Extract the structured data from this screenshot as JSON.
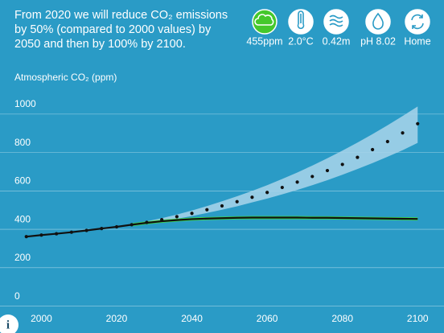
{
  "header": {
    "intro": [
      "From 2020 we will reduce CO₂ emissions",
      "by 50% (compared to 2000 values) by",
      "2050 and then by 100% by 2100."
    ]
  },
  "indicators": [
    {
      "label": "455ppm",
      "selected": true
    },
    {
      "label": "2.0°C",
      "selected": false
    },
    {
      "label": "0.42m",
      "selected": false
    },
    {
      "label": "pH 8.02",
      "selected": false
    },
    {
      "label": "Home",
      "selected": false
    }
  ],
  "info_button": "i",
  "chart_data": {
    "type": "line",
    "y_label": "Atmospheric CO₂ (ppm)",
    "x": [
      1996,
      2000,
      2004,
      2008,
      2012,
      2016,
      2020,
      2024,
      2028,
      2032,
      2036,
      2040,
      2044,
      2048,
      2052,
      2056,
      2060,
      2064,
      2068,
      2072,
      2076,
      2080,
      2084,
      2088,
      2092,
      2096,
      2100
    ],
    "series": [
      {
        "style": "band",
        "color": "#a9d5ea",
        "low": [
          null,
          null,
          null,
          null,
          null,
          null,
          null,
          420,
          430,
          442,
          455,
          469,
          485,
          502,
          520,
          540,
          560,
          582,
          605,
          630,
          656,
          684,
          714,
          745,
          778,
          812,
          850
        ],
        "high": [
          null,
          null,
          null,
          null,
          null,
          null,
          null,
          428,
          442,
          458,
          477,
          498,
          521,
          546,
          572,
          600,
          630,
          662,
          696,
          732,
          770,
          810,
          852,
          896,
          942,
          990,
          1040
        ]
      },
      {
        "style": "band",
        "color": "#3ee23a",
        "low": [
          null,
          null,
          null,
          null,
          null,
          null,
          null,
          416,
          426,
          434,
          440,
          445,
          448,
          450,
          452,
          453,
          453,
          453,
          453,
          452,
          452,
          451,
          450,
          449,
          448,
          447,
          446
        ],
        "high": [
          null,
          null,
          null,
          null,
          null,
          null,
          null,
          432,
          442,
          450,
          456,
          461,
          464,
          466,
          468,
          469,
          469,
          469,
          469,
          468,
          468,
          467,
          466,
          465,
          464,
          463,
          462
        ]
      },
      {
        "style": "line",
        "color": "#111111",
        "values": [
          362,
          370,
          377,
          385,
          394,
          404,
          413,
          424,
          434,
          442,
          448,
          453,
          456,
          458,
          460,
          461,
          461,
          461,
          461,
          460,
          460,
          459,
          458,
          457,
          456,
          455,
          454
        ]
      },
      {
        "style": "dots",
        "color": "#111111",
        "values": [
          362,
          370,
          377,
          385,
          394,
          404,
          413,
          424,
          436,
          450,
          466,
          483,
          502,
          522,
          544,
          567,
          592,
          618,
          646,
          675,
          706,
          738,
          775,
          815,
          857,
          902,
          950
        ]
      }
    ],
    "xlim": [
      1989,
      2107
    ],
    "xticks": [
      2000,
      2020,
      2040,
      2060,
      2080,
      2100
    ],
    "ylim": [
      -140,
      1100
    ],
    "yticks": [
      0,
      200,
      400,
      600,
      800,
      1000
    ],
    "grid": true
  }
}
